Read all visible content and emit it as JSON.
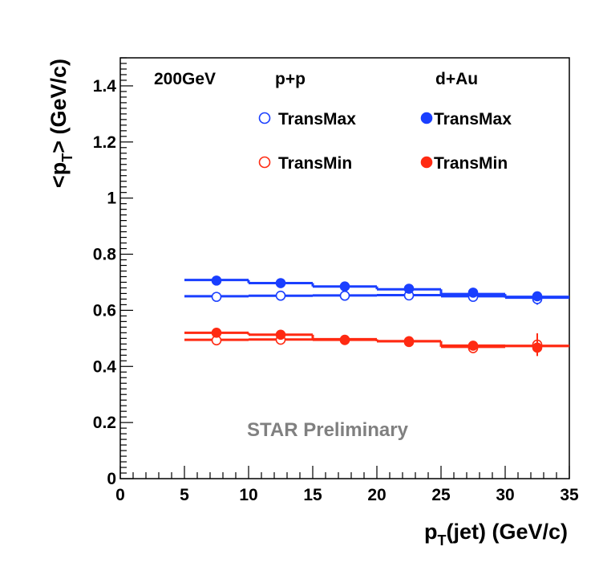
{
  "chart_data": {
    "type": "scatter",
    "title": "",
    "xlabel": {
      "main": "p",
      "sub": "T",
      "rest": "(jet) (GeV/c)"
    },
    "ylabel": {
      "pre": "<p",
      "sub": "T",
      "rest": "> (GeV/c)"
    },
    "xlim": [
      0,
      35
    ],
    "ylim": [
      0,
      1.5
    ],
    "xticks": [
      {
        "v": 0,
        "label": "0"
      },
      {
        "v": 5,
        "label": "5"
      },
      {
        "v": 10,
        "label": "10"
      },
      {
        "v": 15,
        "label": "15"
      },
      {
        "v": 20,
        "label": "20"
      },
      {
        "v": 25,
        "label": "25"
      },
      {
        "v": 30,
        "label": "30"
      },
      {
        "v": 35,
        "label": "35"
      }
    ],
    "yticks": [
      {
        "v": 0,
        "label": "0"
      },
      {
        "v": 0.2,
        "label": "0.2"
      },
      {
        "v": 0.4,
        "label": "0.4"
      },
      {
        "v": 0.6,
        "label": "0.6"
      },
      {
        "v": 0.8,
        "label": "0.8"
      },
      {
        "v": 1.0,
        "label": "1"
      },
      {
        "v": 1.2,
        "label": "1.2"
      },
      {
        "v": 1.4,
        "label": "1.4"
      }
    ],
    "energy_label": "200GeV",
    "group_labels": [
      "p+p",
      "d+Au"
    ],
    "watermark": "STAR Preliminary",
    "x": [
      7.5,
      12.5,
      17.5,
      22.5,
      27.5,
      32.5
    ],
    "series": [
      {
        "name": "TransMax",
        "system": "p+p",
        "color": "#1a3fff",
        "filled": false,
        "values": [
          0.648,
          0.652,
          0.652,
          0.653,
          0.648,
          0.64
        ],
        "errors": [
          0.005,
          0.005,
          0.005,
          0.006,
          0.01,
          0.02
        ],
        "bins": [
          [
            5,
            10,
            0.65
          ],
          [
            10,
            15,
            0.652
          ],
          [
            15,
            20,
            0.653
          ],
          [
            20,
            25,
            0.654
          ],
          [
            25,
            30,
            0.65
          ],
          [
            30,
            35,
            0.645
          ]
        ]
      },
      {
        "name": "TransMax",
        "system": "d+Au",
        "color": "#1a3fff",
        "filled": true,
        "values": [
          0.706,
          0.697,
          0.685,
          0.677,
          0.663,
          0.65
        ],
        "errors": [
          0.005,
          0.005,
          0.005,
          0.006,
          0.01,
          0.015
        ],
        "bins": [
          [
            5,
            10,
            0.708
          ],
          [
            10,
            15,
            0.697
          ],
          [
            15,
            20,
            0.685
          ],
          [
            20,
            25,
            0.675
          ],
          [
            25,
            30,
            0.658
          ],
          [
            30,
            35,
            0.648
          ]
        ]
      },
      {
        "name": "TransMin",
        "system": "p+p",
        "color": "#ff2a12",
        "filled": false,
        "values": [
          0.493,
          0.495,
          0.495,
          0.487,
          0.465,
          0.478
        ],
        "errors": [
          0.005,
          0.005,
          0.005,
          0.006,
          0.01,
          0.04
        ],
        "bins": [
          [
            5,
            10,
            0.495
          ],
          [
            10,
            15,
            0.496
          ],
          [
            15,
            20,
            0.495
          ],
          [
            20,
            25,
            0.49
          ],
          [
            25,
            30,
            0.47
          ],
          [
            30,
            35,
            0.473
          ]
        ]
      },
      {
        "name": "TransMin",
        "system": "d+Au",
        "color": "#ff2a12",
        "filled": true,
        "values": [
          0.52,
          0.513,
          0.494,
          0.49,
          0.474,
          0.467
        ],
        "errors": [
          0.005,
          0.005,
          0.005,
          0.006,
          0.01,
          0.03
        ],
        "bins": [
          [
            5,
            10,
            0.52
          ],
          [
            10,
            15,
            0.513
          ],
          [
            15,
            20,
            0.497
          ],
          [
            20,
            25,
            0.49
          ],
          [
            25,
            30,
            0.474
          ],
          [
            30,
            35,
            0.473
          ]
        ]
      }
    ],
    "legend": [
      {
        "label": "TransMax",
        "series": 0
      },
      {
        "label": "TransMax",
        "series": 1
      },
      {
        "label": "TransMin",
        "series": 2
      },
      {
        "label": "TransMin",
        "series": 3
      }
    ]
  }
}
